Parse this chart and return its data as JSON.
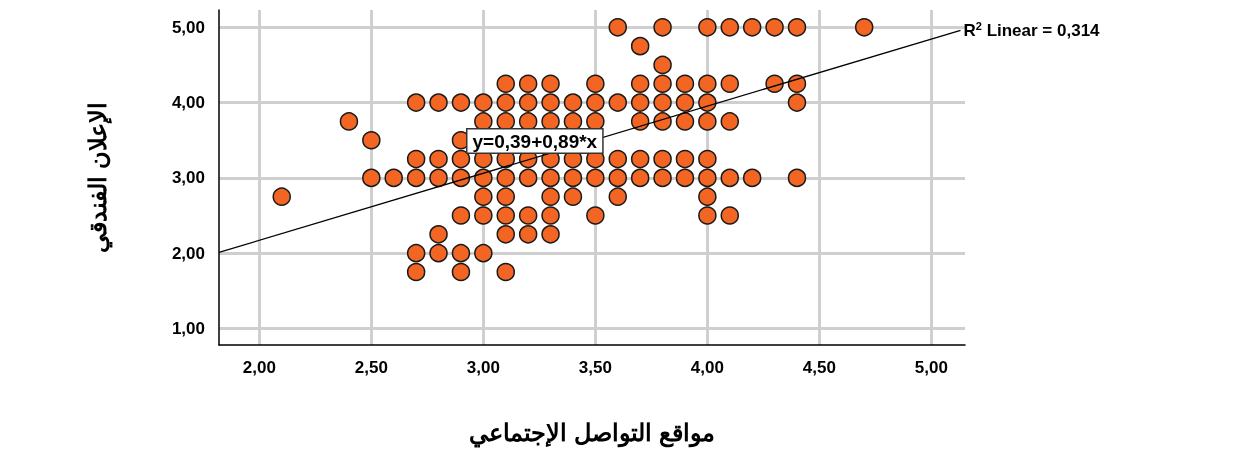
{
  "chart_data": {
    "type": "scatter",
    "xlabel": "مواقع التواصل الإجتماعي",
    "ylabel": "الإعلان الفندقي",
    "xlim": [
      1.82,
      5.15
    ],
    "ylim": [
      0.78,
      5.23
    ],
    "xticks": [
      {
        "value": 2,
        "label": "2,00"
      },
      {
        "value": 2.5,
        "label": "2,50"
      },
      {
        "value": 3,
        "label": "3,00"
      },
      {
        "value": 3.5,
        "label": "3,50"
      },
      {
        "value": 4,
        "label": "4,00"
      },
      {
        "value": 4.5,
        "label": "4,50"
      },
      {
        "value": 5,
        "label": "5,00"
      }
    ],
    "yticks": [
      {
        "value": 1,
        "label": "1,00"
      },
      {
        "value": 2,
        "label": "2,00"
      },
      {
        "value": 3,
        "label": "3,00"
      },
      {
        "value": 4,
        "label": "4,00"
      },
      {
        "value": 5,
        "label": "5,00"
      }
    ],
    "grid": true,
    "marker": "circle",
    "annotations": [
      "y=0,39+0,89*x",
      {
        "text": "R$^{2}$ Linear = 0,314",
        "x": 5.13,
        "y": 4.96
      }
    ],
    "series": [
      {
        "color": "#f26522",
        "x": [
          3.6,
          3.8,
          4.0,
          4.1,
          4.2,
          4.3,
          4.4,
          4.7,
          3.7,
          3.8,
          3.1,
          3.2,
          3.3,
          3.5,
          3.7,
          3.8,
          3.9,
          4.0,
          4.1,
          4.3,
          4.4,
          2.7,
          2.8,
          2.9,
          3.0,
          3.1,
          3.2,
          3.3,
          3.4,
          3.5,
          3.6,
          3.7,
          3.8,
          3.9,
          4.0,
          4.4,
          2.4,
          3.0,
          3.1,
          3.2,
          3.3,
          3.4,
          3.5,
          3.7,
          3.8,
          3.9,
          4.0,
          4.1,
          2.5,
          2.9,
          2.7,
          2.8,
          2.9,
          3.0,
          3.1,
          3.2,
          3.3,
          3.4,
          3.5,
          3.6,
          3.7,
          3.8,
          3.9,
          4.0,
          2.5,
          2.6,
          2.7,
          2.8,
          2.9,
          3.0,
          3.1,
          3.2,
          3.3,
          3.4,
          3.5,
          3.6,
          3.7,
          3.8,
          3.9,
          4.0,
          4.1,
          4.2,
          4.4,
          2.1,
          3.0,
          3.1,
          3.3,
          3.4,
          3.6,
          4.0,
          2.9,
          3.0,
          3.1,
          3.2,
          3.3,
          3.5,
          4.0,
          4.1,
          2.8,
          3.1,
          3.2,
          3.3,
          2.7,
          2.8,
          2.9,
          3.0,
          2.7,
          2.9,
          3.1
        ],
        "values": [
          5,
          5,
          5,
          5,
          5,
          5,
          5,
          5,
          4.75,
          4.5,
          4.25,
          4.25,
          4.25,
          4.25,
          4.25,
          4.25,
          4.25,
          4.25,
          4.25,
          4.25,
          4.25,
          4,
          4,
          4,
          4,
          4,
          4,
          4,
          4,
          4,
          4,
          4,
          4,
          4,
          4,
          4,
          3.75,
          3.75,
          3.75,
          3.75,
          3.75,
          3.75,
          3.75,
          3.75,
          3.75,
          3.75,
          3.75,
          3.75,
          3.5,
          3.5,
          3.25,
          3.25,
          3.25,
          3.25,
          3.25,
          3.25,
          3.25,
          3.25,
          3.25,
          3.25,
          3.25,
          3.25,
          3.25,
          3.25,
          3,
          3,
          3,
          3,
          3,
          3,
          3,
          3,
          3,
          3,
          3,
          3,
          3,
          3,
          3,
          3,
          3,
          3,
          3,
          2.75,
          2.75,
          2.75,
          2.75,
          2.75,
          2.75,
          2.75,
          2.5,
          2.5,
          2.5,
          2.5,
          2.5,
          2.5,
          2.5,
          2.5,
          2.25,
          2.25,
          2.25,
          2.25,
          2,
          2,
          2,
          2,
          1.75,
          1.75,
          1.75
        ]
      },
      {
        "type": "line",
        "color": "#000000",
        "marker": "none",
        "x": [
          1.82,
          5.13
        ],
        "values": [
          2.01,
          4.96
        ]
      }
    ]
  }
}
